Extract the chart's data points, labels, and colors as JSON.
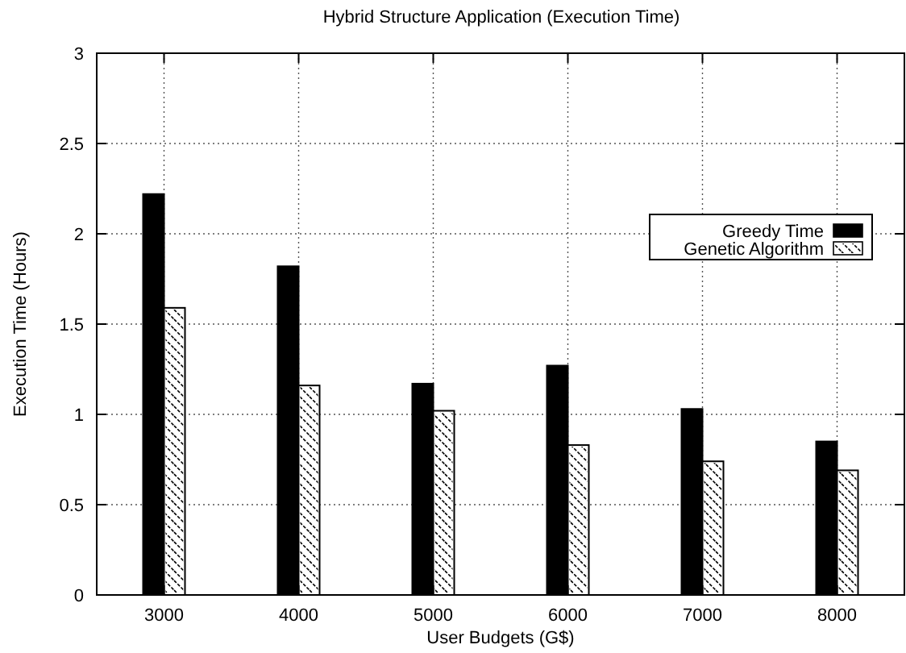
{
  "chart_data": {
    "type": "bar",
    "title": "Hybrid Structure Application (Execution Time)",
    "xlabel": "User Budgets (G$)",
    "ylabel": "Execution Time (Hours)",
    "categories": [
      "3000",
      "4000",
      "5000",
      "6000",
      "7000",
      "8000"
    ],
    "series": [
      {
        "name": "Greedy Time",
        "color": "#000000",
        "values": [
          2.22,
          1.82,
          1.17,
          1.27,
          1.03,
          0.85
        ]
      },
      {
        "name": "Genetic Algorithm",
        "color": "#ffffff",
        "values": [
          1.59,
          1.16,
          1.02,
          0.83,
          0.74,
          0.69
        ]
      }
    ],
    "ylim": [
      0,
      3
    ],
    "yticks": [
      0,
      0.5,
      1,
      1.5,
      2,
      2.5,
      3
    ],
    "grid": true,
    "legend": "top right"
  }
}
